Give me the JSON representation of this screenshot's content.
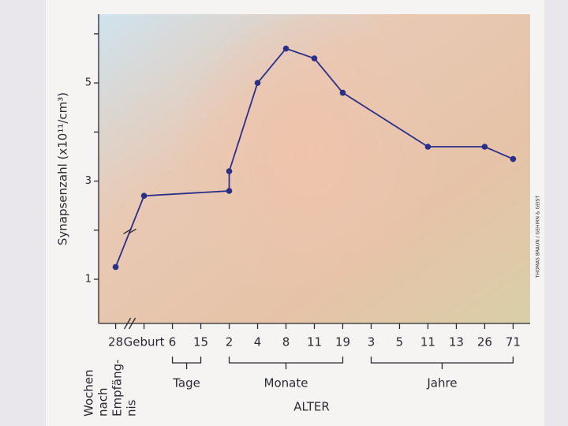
{
  "chart_data": {
    "type": "line",
    "ylabel": "Synapsenzahl (x10¹¹/cm³)",
    "xlabel": "ALTER",
    "credit": "THOMAS BRAUN / GEHIRN & GEIST",
    "ylim": [
      0.1,
      6.4
    ],
    "yticks": [
      1,
      3,
      5
    ],
    "yminor_ticks": [
      2,
      4,
      6
    ],
    "xlim": [
      -0.6,
      14.6
    ],
    "xticks": [
      {
        "value": 0,
        "label": "28"
      },
      {
        "value": 1,
        "label": "Geburt"
      },
      {
        "value": 2,
        "label": "6"
      },
      {
        "value": 3,
        "label": "15"
      },
      {
        "value": 4,
        "label": "2"
      },
      {
        "value": 5,
        "label": "4"
      },
      {
        "value": 6,
        "label": "8"
      },
      {
        "value": 7,
        "label": "11"
      },
      {
        "value": 8,
        "label": "19"
      },
      {
        "value": 9,
        "label": "3"
      },
      {
        "value": 10,
        "label": "5"
      },
      {
        "value": 11,
        "label": "11"
      },
      {
        "value": 12,
        "label": "13"
      },
      {
        "value": 13,
        "label": "26"
      },
      {
        "value": 14,
        "label": "71"
      }
    ],
    "groups": [
      {
        "label": "Tage",
        "from": 2,
        "to": 3
      },
      {
        "label": "Monate",
        "from": 4,
        "to": 8
      },
      {
        "label": "Jahre",
        "from": 9,
        "to": 14
      }
    ],
    "prenatal_label": [
      "Wochen",
      "nach",
      "Empfäng-",
      "nis"
    ],
    "series": [
      {
        "color": "#2b2f8a",
        "x": [
          0,
          1,
          4,
          4,
          5,
          6,
          7,
          8,
          11,
          13,
          14
        ],
        "values": [
          1.25,
          2.7,
          2.8,
          3.2,
          5.0,
          5.7,
          5.5,
          4.8,
          3.7,
          3.7,
          3.45
        ]
      }
    ]
  }
}
